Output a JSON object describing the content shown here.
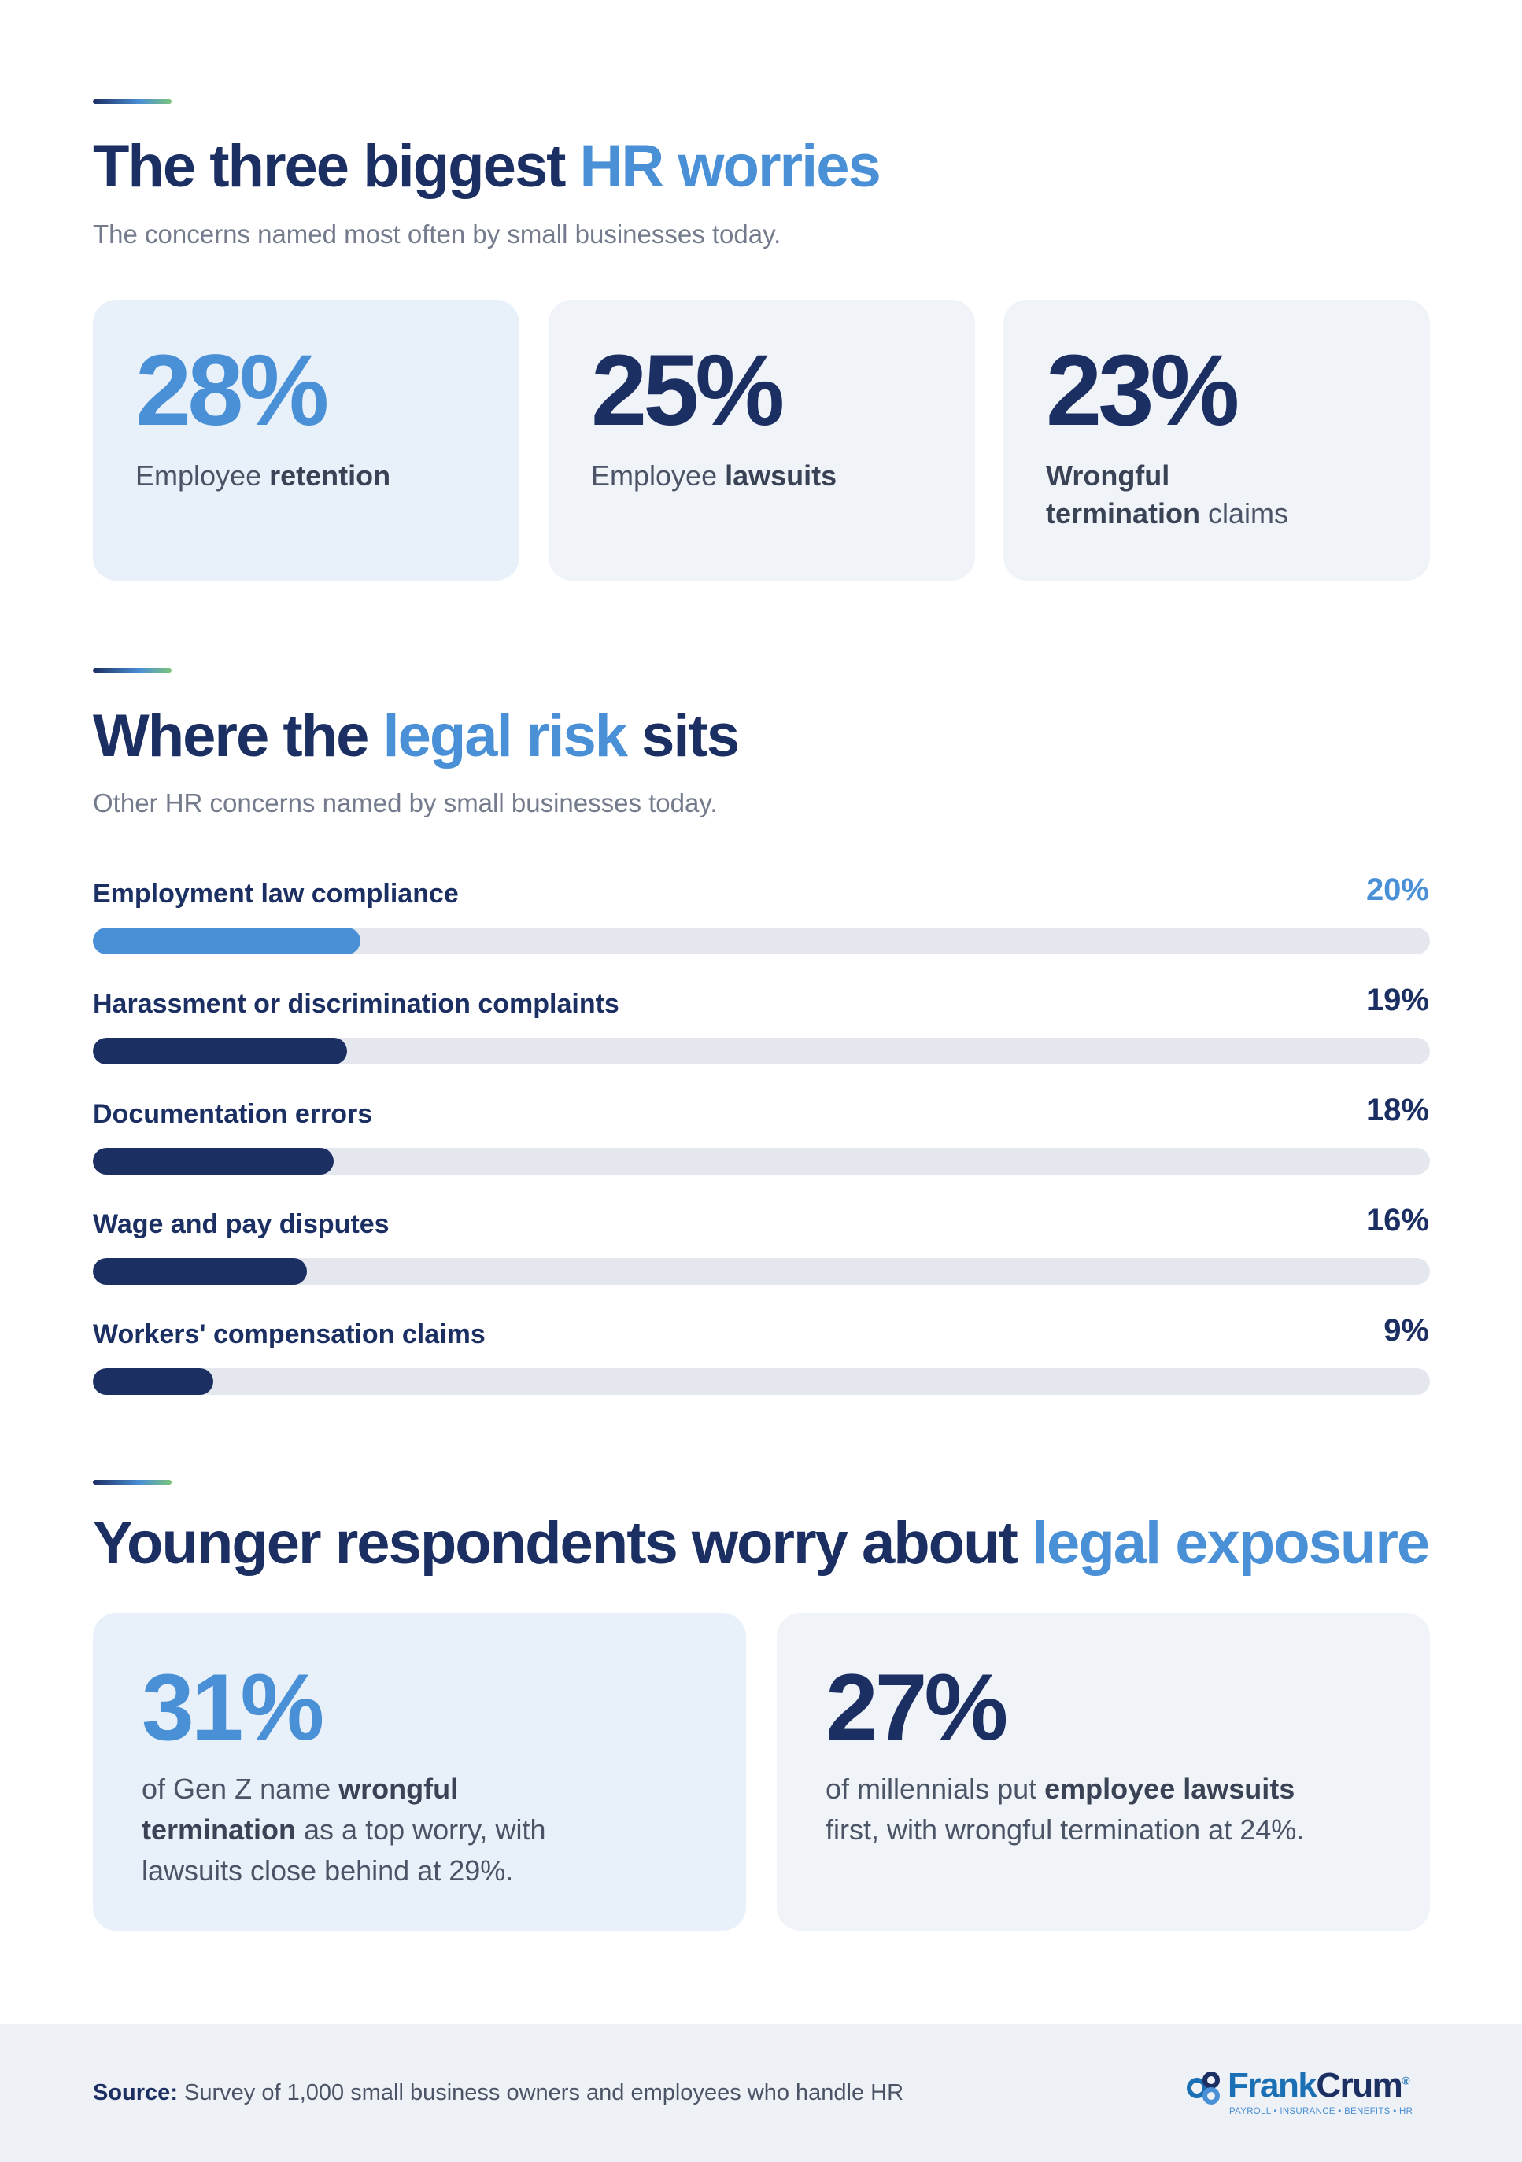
{
  "section1": {
    "title_a": "The three biggest ",
    "title_b": "HR worries",
    "subtitle": "The concerns named most often by small businesses today.",
    "cards": [
      {
        "value": "28%",
        "text_a": "Employee ",
        "text_b": "retention",
        "text_c": ""
      },
      {
        "value": "25%",
        "text_a": "Employee ",
        "text_b": "lawsuits",
        "text_c": ""
      },
      {
        "value": "23%",
        "text_a": "",
        "text_b": "Wrongful termination",
        "text_c": " claims"
      }
    ]
  },
  "section2": {
    "title_a": "Where the ",
    "title_b": "legal risk",
    "title_c": " sits",
    "subtitle": "Other HR concerns named by small businesses today."
  },
  "chart_data": {
    "type": "bar",
    "orientation": "horizontal",
    "categories": [
      "Employment law compliance",
      "Harassment or discrimination complaints",
      "Documentation errors",
      "Wage and pay disputes",
      "Workers' compensation claims"
    ],
    "values": [
      20,
      19,
      18,
      16,
      9
    ],
    "labels": [
      "20%",
      "19%",
      "18%",
      "16%",
      "9%"
    ],
    "xlim": [
      0,
      100
    ],
    "highlight_index": 0,
    "colors": {
      "highlight": "#4a90d6",
      "default": "#1b2f63",
      "track": "#e4e8ee"
    }
  },
  "section3": {
    "title_a": "Younger respondents worry about ",
    "title_b": "legal exposure",
    "cards": [
      {
        "value": "31%",
        "text_a": "of Gen Z name ",
        "text_b": "wrongful termination",
        "text_c": " as a top worry, with lawsuits close behind at 29%."
      },
      {
        "value": "27%",
        "text_a": "of millennials put ",
        "text_b": "employee lawsuits",
        "text_c": " first, with wrongful termination at 24%."
      }
    ]
  },
  "footer": {
    "source_label": "Source:",
    "source_text": " Survey of 1,000 small business owners and employees who handle HR",
    "logo_frank": "Frank",
    "logo_crum": "Crum",
    "logo_reg": "®",
    "logo_tagline": "PAYROLL • INSURANCE • BENEFITS • HR"
  },
  "colors": {
    "navy": "#1b2f63",
    "blue": "#4a90d6",
    "gray": "#737b8c",
    "green": "#7cc47a"
  }
}
